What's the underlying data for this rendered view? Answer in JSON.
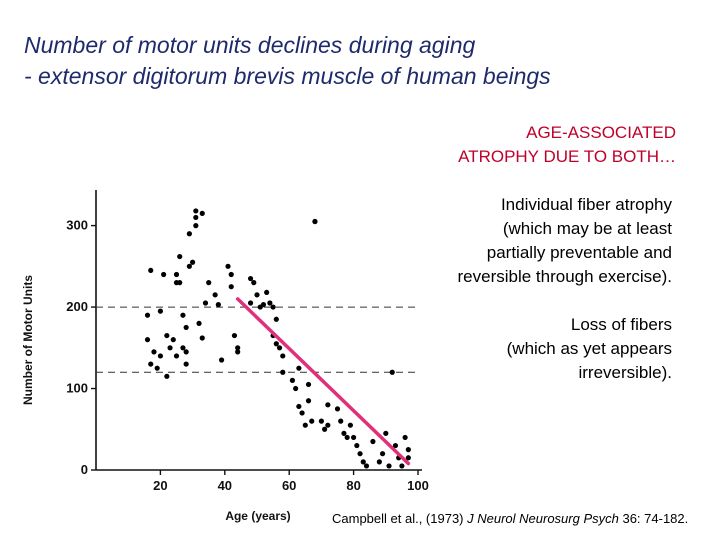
{
  "slide": {
    "title_line1": "Number of motor units declines during aging",
    "title_line2": "- extensor digitorum brevis muscle of human beings",
    "heading_line1": "AGE-ASSOCIATED",
    "heading_line2": "ATROPHY DUE TO BOTH…",
    "note1_lines": [
      "Individual fiber atrophy",
      "(which may be at least",
      "partially preventable and",
      "reversible through exercise)."
    ],
    "note2_lines": [
      "Loss of fibers",
      "(which as yet appears",
      "irreversible)."
    ],
    "citation_pre": "Campbell et al., (1973) ",
    "citation_journal": "J Neurol Neurosurg Psych",
    "citation_post": " 36: 74-182."
  },
  "colors": {
    "title": "#1f2a6b",
    "heading": "#c0002a",
    "trend_line": "#e0307a",
    "points": "#000000"
  },
  "chart_data": {
    "type": "scatter",
    "xlabel": "Age (years)",
    "ylabel": "Number of Motor Units",
    "xlim": [
      0,
      100
    ],
    "ylim": [
      0,
      300
    ],
    "xticks": [
      "20",
      "40",
      "60",
      "80",
      "100"
    ],
    "yticks": [
      "0",
      "100",
      "200",
      "300"
    ],
    "reference_lines_y": [
      200,
      120
    ],
    "trend_line": {
      "from": [
        44,
        210
      ],
      "to": [
        97,
        8
      ]
    },
    "points": [
      [
        17,
        245
      ],
      [
        16,
        190
      ],
      [
        16,
        160
      ],
      [
        18,
        145
      ],
      [
        17,
        130
      ],
      [
        20,
        195
      ],
      [
        21,
        240
      ],
      [
        20,
        140
      ],
      [
        19,
        125
      ],
      [
        22,
        165
      ],
      [
        23,
        150
      ],
      [
        22,
        115
      ],
      [
        24,
        160
      ],
      [
        25,
        140
      ],
      [
        25,
        240
      ],
      [
        25,
        230
      ],
      [
        26,
        262
      ],
      [
        26,
        230
      ],
      [
        27,
        190
      ],
      [
        27,
        150
      ],
      [
        29,
        250
      ],
      [
        28,
        175
      ],
      [
        28,
        145
      ],
      [
        28,
        130
      ],
      [
        29,
        290
      ],
      [
        30,
        255
      ],
      [
        31,
        300
      ],
      [
        31,
        310
      ],
      [
        31,
        318
      ],
      [
        33,
        315
      ],
      [
        32,
        180
      ],
      [
        33,
        162
      ],
      [
        35,
        230
      ],
      [
        34,
        205
      ],
      [
        37,
        215
      ],
      [
        38,
        203
      ],
      [
        39,
        135
      ],
      [
        41,
        250
      ],
      [
        42,
        225
      ],
      [
        42,
        240
      ],
      [
        43,
        165
      ],
      [
        44,
        150
      ],
      [
        44,
        145
      ],
      [
        48,
        235
      ],
      [
        48,
        205
      ],
      [
        49,
        230
      ],
      [
        50,
        215
      ],
      [
        51,
        200
      ],
      [
        52,
        203
      ],
      [
        53,
        218
      ],
      [
        54,
        205
      ],
      [
        55,
        200
      ],
      [
        56,
        185
      ],
      [
        55,
        165
      ],
      [
        56,
        155
      ],
      [
        57,
        150
      ],
      [
        58,
        140
      ],
      [
        58,
        120
      ],
      [
        61,
        110
      ],
      [
        62,
        100
      ],
      [
        63,
        125
      ],
      [
        63,
        78
      ],
      [
        64,
        70
      ],
      [
        65,
        55
      ],
      [
        66,
        105
      ],
      [
        66,
        85
      ],
      [
        68,
        305
      ],
      [
        68,
        305
      ],
      [
        67,
        60
      ],
      [
        70,
        60
      ],
      [
        71,
        50
      ],
      [
        72,
        80
      ],
      [
        72,
        55
      ],
      [
        75,
        75
      ],
      [
        76,
        60
      ],
      [
        77,
        45
      ],
      [
        78,
        40
      ],
      [
        79,
        55
      ],
      [
        80,
        40
      ],
      [
        81,
        30
      ],
      [
        82,
        20
      ],
      [
        83,
        10
      ],
      [
        84,
        5
      ],
      [
        86,
        35
      ],
      [
        88,
        10
      ],
      [
        89,
        20
      ],
      [
        90,
        45
      ],
      [
        91,
        5
      ],
      [
        92,
        120
      ],
      [
        93,
        30
      ],
      [
        94,
        15
      ],
      [
        95,
        5
      ],
      [
        96,
        40
      ],
      [
        97,
        25
      ],
      [
        97,
        15
      ]
    ]
  }
}
